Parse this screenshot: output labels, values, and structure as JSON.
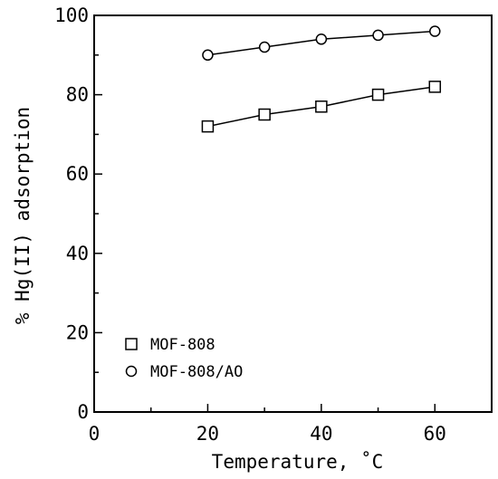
{
  "chart_data": {
    "type": "line",
    "title": "",
    "xlabel": "Temperature, ˚C",
    "ylabel": "% Hg(II) adsorption",
    "xlim": [
      0,
      70
    ],
    "ylim": [
      0,
      100
    ],
    "x_ticks": [
      0,
      20,
      40,
      60
    ],
    "x_tick_labels": [
      "0",
      "20",
      "40",
      "60"
    ],
    "x_minor_step": 10,
    "y_ticks": [
      0,
      20,
      40,
      60,
      80,
      100
    ],
    "y_tick_labels": [
      "0",
      "20",
      "40",
      "60",
      "80",
      "100"
    ],
    "y_minor_step": 10,
    "grid": false,
    "legend_position": "bottom-left",
    "x": [
      20,
      30,
      40,
      50,
      60
    ],
    "series": [
      {
        "name": "MOF-808",
        "marker": "square",
        "color": "#000000",
        "values": [
          72,
          75,
          77,
          80,
          82
        ]
      },
      {
        "name": "MOF-808/AO",
        "marker": "circle",
        "color": "#000000",
        "values": [
          90,
          92,
          94,
          95,
          96
        ]
      }
    ]
  }
}
